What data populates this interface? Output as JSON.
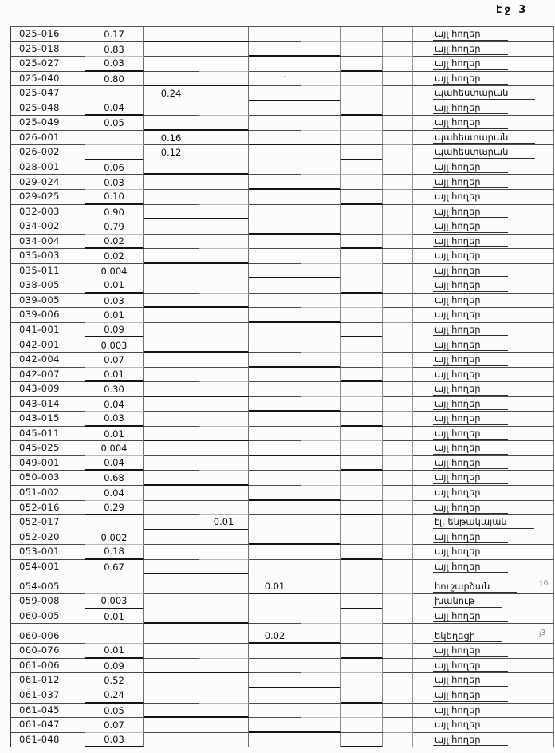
{
  "page": {
    "number_label": "էջ 3"
  },
  "table": {
    "rows": [
      {
        "code": "025-016",
        "value": "0.17",
        "value_col": 2,
        "label": "այլ հողեր"
      },
      {
        "code": "025-018",
        "value": "0.83",
        "value_col": 2,
        "label": "այլ հողեր"
      },
      {
        "code": "025-027",
        "value": "0.03",
        "value_col": 2,
        "label": "այլ հողեր"
      },
      {
        "code": "025-040",
        "value": "0.80",
        "value_col": 2,
        "label": "այլ հողեր"
      },
      {
        "code": "025-047",
        "value": "0.24",
        "value_col": 3,
        "label": "պահեստարան"
      },
      {
        "code": "025-048",
        "value": "0.04",
        "value_col": 2,
        "label": "այլ հողեր"
      },
      {
        "code": "025-049",
        "value": "0.05",
        "value_col": 2,
        "label": "այլ հողեր"
      },
      {
        "code": "026-001",
        "value": "0.16",
        "value_col": 3,
        "label": "պահեստարան"
      },
      {
        "code": "026-002",
        "value": "0.12",
        "value_col": 3,
        "label": "պահեստարան"
      },
      {
        "code": "028-001",
        "value": "0.06",
        "value_col": 2,
        "label": "այլ հողեր"
      },
      {
        "code": "029-024",
        "value": "0.03",
        "value_col": 2,
        "label": "այլ հողեր"
      },
      {
        "code": "029-025",
        "value": "0.10",
        "value_col": 2,
        "label": "այլ հողեր"
      },
      {
        "code": "032-003",
        "value": "0.90",
        "value_col": 2,
        "label": "այլ հողեր"
      },
      {
        "code": "034-002",
        "value": "0.79",
        "value_col": 2,
        "label": "այլ հողեր"
      },
      {
        "code": "034-004",
        "value": "0.02",
        "value_col": 2,
        "label": "այլ հողեր"
      },
      {
        "code": "035-003",
        "value": "0.02",
        "value_col": 2,
        "label": "այլ հողեր"
      },
      {
        "code": "035-011",
        "value": "0.004",
        "value_col": 2,
        "label": "այլ հողեր"
      },
      {
        "code": "038-005",
        "value": "0.01",
        "value_col": 2,
        "label": "այլ հողեր"
      },
      {
        "code": "039-005",
        "value": "0.03",
        "value_col": 2,
        "label": "այլ հողեր"
      },
      {
        "code": "039-006",
        "value": "0.01",
        "value_col": 2,
        "label": "այլ հողեր"
      },
      {
        "code": "041-001",
        "value": "0.09",
        "value_col": 2,
        "label": "այլ հողեր"
      },
      {
        "code": "042-001",
        "value": "0.003",
        "value_col": 2,
        "label": "այլ հողեր"
      },
      {
        "code": "042-004",
        "value": "0.07",
        "value_col": 2,
        "label": "այլ հողեր"
      },
      {
        "code": "042-007",
        "value": "0.01",
        "value_col": 2,
        "label": "այլ հողեր"
      },
      {
        "code": "043-009",
        "value": "0.30",
        "value_col": 2,
        "label": "այլ հողեր"
      },
      {
        "code": "043-014",
        "value": "0.04",
        "value_col": 2,
        "label": "այլ հողեր"
      },
      {
        "code": "043-015",
        "value": "0.03",
        "value_col": 2,
        "label": "այլ հողեր"
      },
      {
        "code": "045-011",
        "value": "0.01",
        "value_col": 2,
        "label": "այլ հողեր"
      },
      {
        "code": "045-025",
        "value": "0.004",
        "value_col": 2,
        "label": "այլ հողեր"
      },
      {
        "code": "049-001",
        "value": "0.04",
        "value_col": 2,
        "label": "այլ հողեր"
      },
      {
        "code": "050-003",
        "value": "0.68",
        "value_col": 2,
        "label": "այլ հողեր"
      },
      {
        "code": "051-002",
        "value": "0.04",
        "value_col": 2,
        "label": "այլ հողեր"
      },
      {
        "code": "052-016",
        "value": "0.29",
        "value_col": 2,
        "label": "այլ հողեր"
      },
      {
        "code": "052-017",
        "value": "0.01",
        "value_col": 4,
        "label": "էլ. ենթակայան"
      },
      {
        "code": "052-020",
        "value": "0.002",
        "value_col": 2,
        "label": "այլ հողեր"
      },
      {
        "code": "053-001",
        "value": "0.18",
        "value_col": 2,
        "label": "այլ հողեր"
      },
      {
        "code": "054-001",
        "value": "0.67",
        "value_col": 2,
        "label": "այլ հողեր"
      },
      {
        "code": "054-005",
        "value": "0.01",
        "value_col": 5,
        "label": "հուշարձան",
        "tall": true
      },
      {
        "code": "059-008",
        "value": "0.003",
        "value_col": 2,
        "label": "խանութ"
      },
      {
        "code": "060-005",
        "value": "0.01",
        "value_col": 2,
        "label": "այլ հողեր"
      },
      {
        "code": "060-006",
        "value": "0.02",
        "value_col": 5,
        "label": "եկեղեցի",
        "tall": true
      },
      {
        "code": "060-076",
        "value": "0.01",
        "value_col": 2,
        "label": "այլ հողեր"
      },
      {
        "code": "061-006",
        "value": "0.09",
        "value_col": 2,
        "label": "այլ հողեր"
      },
      {
        "code": "061-012",
        "value": "0.52",
        "value_col": 2,
        "label": "այլ հողեր"
      },
      {
        "code": "061-037",
        "value": "0.24",
        "value_col": 2,
        "label": "այլ հողեր"
      },
      {
        "code": "061-045",
        "value": "0.05",
        "value_col": 2,
        "label": "այլ հողեր"
      },
      {
        "code": "061-047",
        "value": "0.07",
        "value_col": 2,
        "label": "այլ հողեր"
      },
      {
        "code": "061-048",
        "value": "0.03",
        "value_col": 2,
        "label": "այլ հողեր"
      }
    ]
  },
  "margin_notes": [
    {
      "text": "10"
    },
    {
      "text": "յ3"
    }
  ]
}
